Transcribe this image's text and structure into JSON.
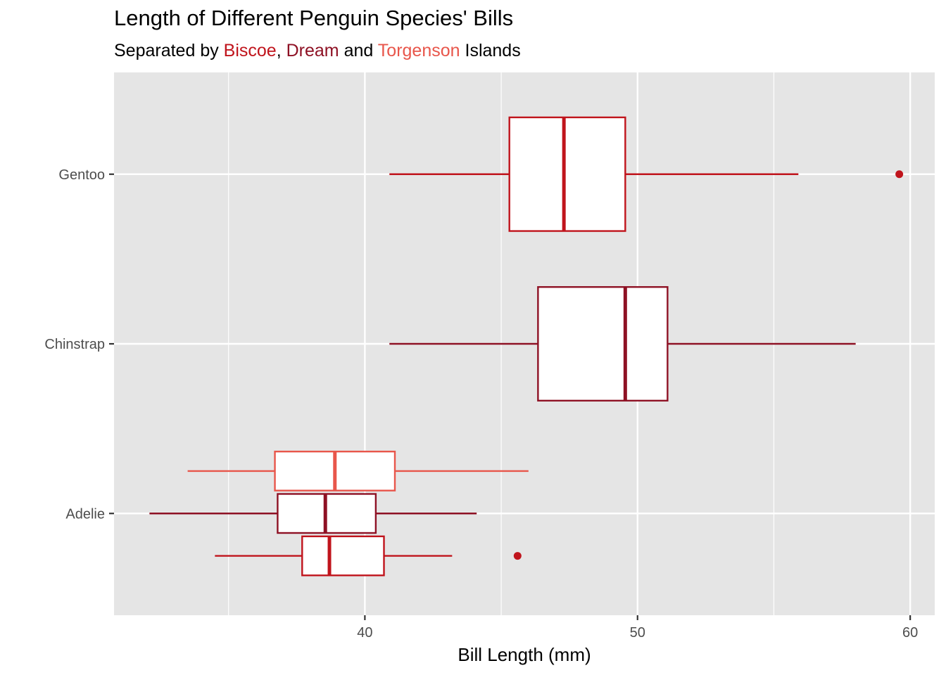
{
  "chart_data": {
    "type": "boxplot",
    "title": "Length of Different Penguin Species' Bills",
    "subtitle": {
      "prefix": "Separated by ",
      "sep1": ", ",
      "sep2": " and ",
      "suffix": " Islands"
    },
    "xlabel": "Bill Length (mm)",
    "ylabel": "",
    "xlim": [
      30.8,
      60.9
    ],
    "x_ticks": [
      40,
      50,
      60
    ],
    "x_minor_ticks": [
      35,
      45,
      55
    ],
    "categories": [
      "Adelie",
      "Chinstrap",
      "Gentoo"
    ],
    "grid": true,
    "legend": "in subtitle",
    "islands": [
      {
        "name": "Biscoe",
        "color": "#c0141c"
      },
      {
        "name": "Dream",
        "color": "#8e1124"
      },
      {
        "name": "Torgenson",
        "color": "#e8564b"
      }
    ],
    "boxes": [
      {
        "species": "Adelie",
        "island": "Torgenson",
        "offset": 0.25,
        "width": 0.23,
        "whisker_low": 33.5,
        "q1": 36.7,
        "median": 38.9,
        "q3": 41.1,
        "whisker_high": 46.0,
        "outliers": []
      },
      {
        "species": "Adelie",
        "island": "Dream",
        "offset": 0.0,
        "width": 0.23,
        "whisker_low": 32.1,
        "q1": 36.8,
        "median": 38.55,
        "q3": 40.4,
        "whisker_high": 44.1,
        "outliers": []
      },
      {
        "species": "Adelie",
        "island": "Biscoe",
        "offset": -0.25,
        "width": 0.23,
        "whisker_low": 34.5,
        "q1": 37.7,
        "median": 38.7,
        "q3": 40.7,
        "whisker_high": 43.2,
        "outliers": [
          45.6
        ]
      },
      {
        "species": "Chinstrap",
        "island": "Dream",
        "offset": 0.0,
        "width": 0.67,
        "whisker_low": 40.9,
        "q1": 46.35,
        "median": 49.55,
        "q3": 51.1,
        "whisker_high": 58.0,
        "outliers": []
      },
      {
        "species": "Gentoo",
        "island": "Biscoe",
        "offset": 0.0,
        "width": 0.67,
        "whisker_low": 40.9,
        "q1": 45.3,
        "median": 47.3,
        "q3": 49.55,
        "whisker_high": 55.9,
        "outliers": [
          59.6
        ]
      }
    ]
  }
}
